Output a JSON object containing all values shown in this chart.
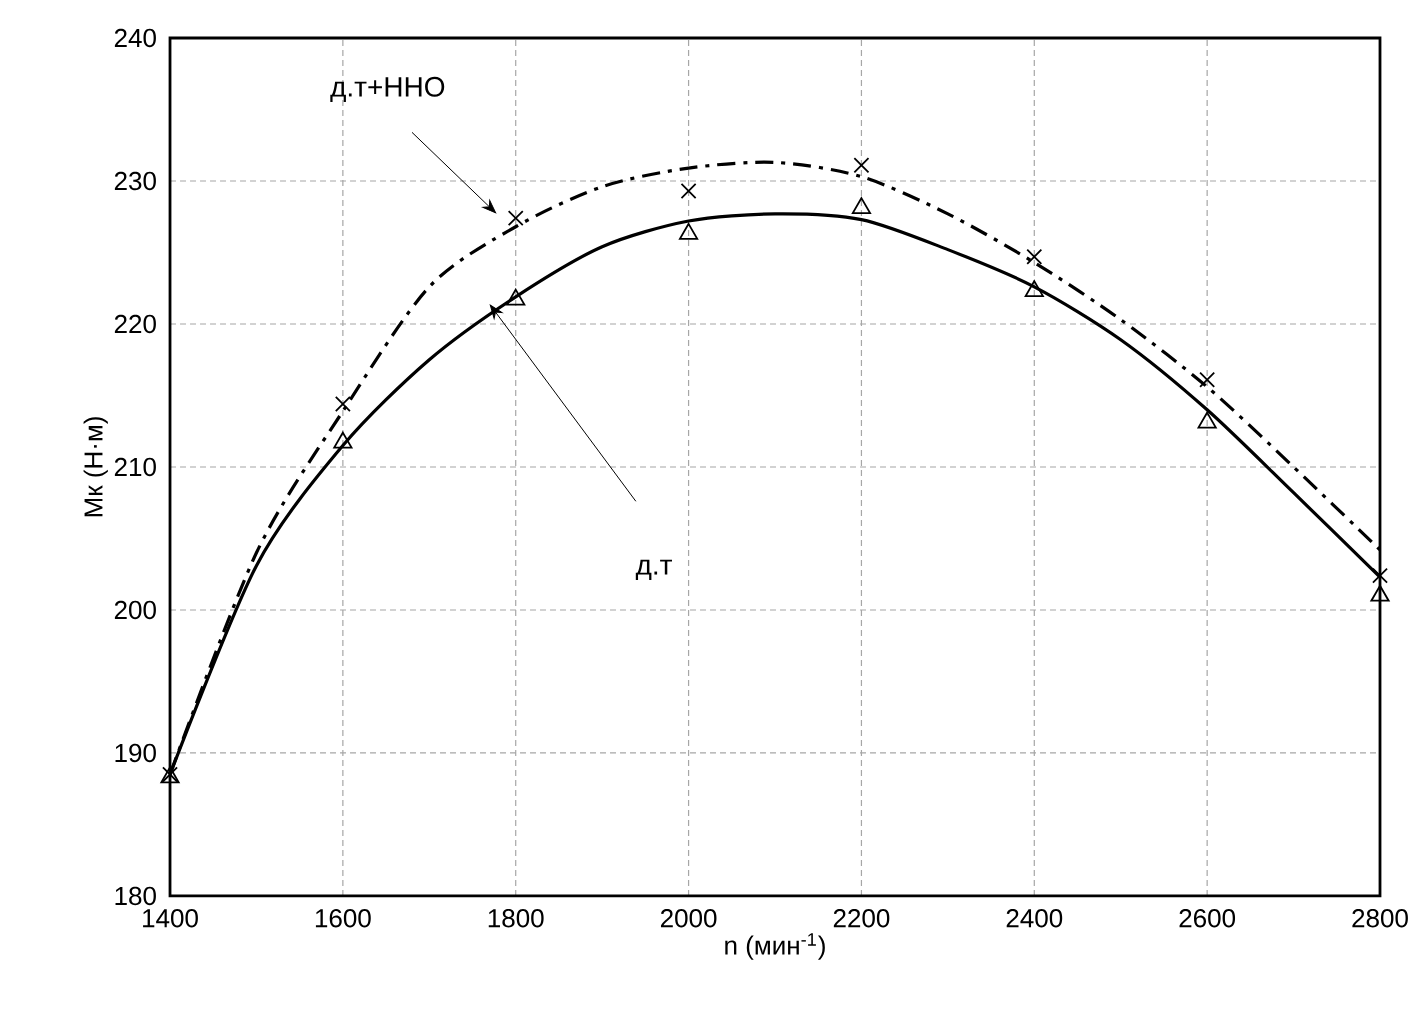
{
  "chart_data": {
    "type": "scatter",
    "xlabel": "n (мин$^{-1}$)",
    "ylabel": "Mк (Н·м)",
    "xlim": [
      1400,
      2800
    ],
    "xticks": [
      1400,
      1600,
      1800,
      2000,
      2200,
      2400,
      2600,
      2800
    ],
    "ylim": [
      180,
      240
    ],
    "yticks": [
      180,
      190,
      200,
      210,
      220,
      230,
      240
    ],
    "grid": true,
    "series": [
      {
        "color": "#000000",
        "marker": "cross",
        "x": [
          1400,
          1600,
          1800,
          2000,
          2200,
          2400,
          2600,
          2800
        ],
        "values": [
          188.5,
          214.4,
          227.4,
          229.3,
          231.1,
          224.7,
          216.1,
          202.4
        ]
      },
      {
        "color": "#000000",
        "marker": "triangle",
        "x": [
          1400,
          1600,
          1800,
          2000,
          2200,
          2400,
          2600,
          2800
        ],
        "values": [
          188.3,
          211.7,
          221.7,
          226.3,
          228.1,
          222.3,
          213.1,
          201
        ]
      },
      {
        "type": "line",
        "color": "#000000",
        "line_style": "dashdot",
        "marker": "none",
        "x": [
          1400,
          1500,
          1600,
          1700,
          1800,
          1900,
          2000,
          2100,
          2200,
          2300,
          2400,
          2500,
          2600,
          2700,
          2800
        ],
        "values": [
          188.5,
          204,
          213.9,
          222.6,
          226.8,
          229.6,
          230.9,
          231.3,
          230.3,
          227.7,
          224.3,
          220.3,
          215.6,
          210,
          204.2
        ]
      },
      {
        "type": "line",
        "color": "#000000",
        "line_style": "solid",
        "marker": "none",
        "x": [
          1400,
          1500,
          1600,
          1700,
          1800,
          1900,
          2000,
          2100,
          2200,
          2300,
          2400,
          2500,
          2600,
          2700,
          2800
        ],
        "values": [
          188.5,
          203.1,
          211.5,
          217.5,
          221.9,
          225.4,
          227.2,
          227.7,
          227.3,
          225.2,
          222.6,
          218.9,
          214,
          208.2,
          202.3
        ]
      }
    ],
    "annotations": [
      "д.т+ННО",
      "д.т"
    ]
  }
}
